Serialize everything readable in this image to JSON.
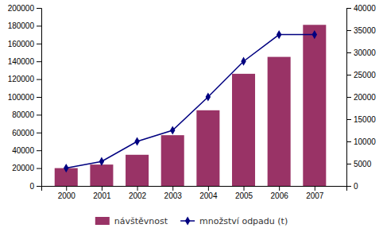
{
  "chart_data": {
    "type": "bar",
    "x": [
      2000,
      2001,
      2002,
      2003,
      2004,
      2005,
      2006,
      2007
    ],
    "xlim": [
      1999.3,
      2007.9
    ],
    "xticks": [
      2000,
      2001,
      2002,
      2003,
      2004,
      2005,
      2006,
      2007
    ],
    "ylim": [
      0,
      200000
    ],
    "yticks": [
      0,
      20000,
      40000,
      60000,
      80000,
      100000,
      120000,
      140000,
      160000,
      180000,
      200000
    ],
    "y2lim": [
      0,
      40000
    ],
    "y2ticks": [
      0,
      5000,
      10000,
      15000,
      20000,
      25000,
      30000,
      35000,
      40000
    ],
    "grid": false,
    "legend": "bottom",
    "series": [
      {
        "name": "návštěvnost",
        "type": "bar",
        "color": "#993366",
        "values": [
          20000,
          24000,
          35000,
          57000,
          85000,
          126000,
          145000,
          181000
        ]
      },
      {
        "name": "množství odpadu (t)",
        "type": "line",
        "axis": "y2",
        "color": "#000080",
        "marker": "diamond",
        "values": [
          4000,
          5500,
          10000,
          12500,
          20000,
          28000,
          34000,
          34000
        ]
      }
    ]
  }
}
